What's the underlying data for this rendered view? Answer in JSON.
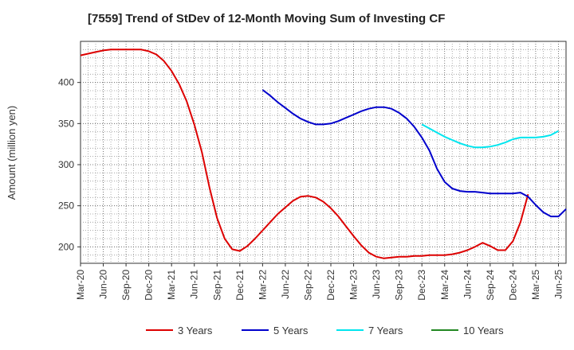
{
  "chart_data": {
    "type": "line",
    "title": "[7559]  Trend of StDev of 12-Month Moving Sum of Investing CF",
    "xlabel": "",
    "ylabel": "Amount (million yen)",
    "x_ticks": [
      "Mar-20",
      "Jun-20",
      "Sep-20",
      "Dec-20",
      "Mar-21",
      "Jun-21",
      "Sep-21",
      "Dec-21",
      "Mar-22",
      "Jun-22",
      "Sep-22",
      "Dec-22",
      "Mar-23",
      "Jun-23",
      "Sep-23",
      "Dec-23",
      "Mar-24",
      "Jun-24",
      "Sep-24",
      "Dec-24",
      "Mar-25",
      "Jun-25"
    ],
    "y_ticks": [
      200,
      250,
      300,
      350,
      400
    ],
    "xlim": [
      0,
      63
    ],
    "ylim": [
      180,
      450
    ],
    "grid": true,
    "legend_position": "bottom",
    "series": [
      {
        "name": "3 Years",
        "color": "#dd0000",
        "points": [
          [
            0,
            433
          ],
          [
            1,
            435
          ],
          [
            2,
            437
          ],
          [
            3,
            439
          ],
          [
            4,
            440
          ],
          [
            5,
            440
          ],
          [
            6,
            440
          ],
          [
            7,
            440
          ],
          [
            8,
            440
          ],
          [
            9,
            438
          ],
          [
            10,
            434
          ],
          [
            11,
            426
          ],
          [
            12,
            414
          ],
          [
            13,
            398
          ],
          [
            14,
            377
          ],
          [
            15,
            349
          ],
          [
            16,
            315
          ],
          [
            17,
            272
          ],
          [
            18,
            235
          ],
          [
            19,
            210
          ],
          [
            20,
            197
          ],
          [
            21,
            195
          ],
          [
            22,
            201
          ],
          [
            23,
            210
          ],
          [
            24,
            220
          ],
          [
            25,
            230
          ],
          [
            26,
            240
          ],
          [
            27,
            248
          ],
          [
            28,
            256
          ],
          [
            29,
            261
          ],
          [
            30,
            262
          ],
          [
            31,
            260
          ],
          [
            32,
            255
          ],
          [
            33,
            247
          ],
          [
            34,
            237
          ],
          [
            35,
            225
          ],
          [
            36,
            213
          ],
          [
            37,
            202
          ],
          [
            38,
            193
          ],
          [
            39,
            188
          ],
          [
            40,
            186
          ],
          [
            41,
            187
          ],
          [
            42,
            188
          ],
          [
            43,
            188
          ],
          [
            44,
            189
          ],
          [
            45,
            189
          ],
          [
            46,
            190
          ],
          [
            47,
            190
          ],
          [
            48,
            190
          ],
          [
            49,
            191
          ],
          [
            50,
            193
          ],
          [
            51,
            196
          ],
          [
            52,
            200
          ],
          [
            53,
            205
          ],
          [
            54,
            201
          ],
          [
            55,
            196
          ],
          [
            56,
            196
          ],
          [
            57,
            207
          ],
          [
            58,
            230
          ],
          [
            59,
            264
          ]
        ]
      },
      {
        "name": "5 Years",
        "color": "#0000cc",
        "points": [
          [
            24,
            391
          ],
          [
            25,
            384
          ],
          [
            26,
            376
          ],
          [
            27,
            369
          ],
          [
            28,
            362
          ],
          [
            29,
            356
          ],
          [
            30,
            352
          ],
          [
            31,
            349
          ],
          [
            32,
            349
          ],
          [
            33,
            350
          ],
          [
            34,
            353
          ],
          [
            35,
            357
          ],
          [
            36,
            361
          ],
          [
            37,
            365
          ],
          [
            38,
            368
          ],
          [
            39,
            370
          ],
          [
            40,
            370
          ],
          [
            41,
            368
          ],
          [
            42,
            363
          ],
          [
            43,
            356
          ],
          [
            44,
            346
          ],
          [
            45,
            333
          ],
          [
            46,
            317
          ],
          [
            47,
            295
          ],
          [
            48,
            279
          ],
          [
            49,
            271
          ],
          [
            50,
            268
          ],
          [
            51,
            267
          ],
          [
            52,
            267
          ],
          [
            53,
            266
          ],
          [
            54,
            265
          ],
          [
            55,
            265
          ],
          [
            56,
            265
          ],
          [
            57,
            265
          ],
          [
            58,
            266
          ],
          [
            59,
            261
          ],
          [
            60,
            251
          ],
          [
            61,
            242
          ],
          [
            62,
            237
          ],
          [
            63,
            237
          ],
          [
            64,
            246
          ]
        ]
      },
      {
        "name": "7 Years",
        "color": "#00e5ee",
        "points": [
          [
            45,
            349
          ],
          [
            46,
            344
          ],
          [
            47,
            339
          ],
          [
            48,
            334
          ],
          [
            49,
            330
          ],
          [
            50,
            326
          ],
          [
            51,
            323
          ],
          [
            52,
            321
          ],
          [
            53,
            321
          ],
          [
            54,
            322
          ],
          [
            55,
            324
          ],
          [
            56,
            327
          ],
          [
            57,
            331
          ],
          [
            58,
            333
          ],
          [
            59,
            333
          ],
          [
            60,
            333
          ],
          [
            61,
            334
          ],
          [
            62,
            336
          ],
          [
            63,
            341
          ]
        ]
      },
      {
        "name": "10 Years",
        "color": "#228822",
        "points": []
      }
    ]
  }
}
